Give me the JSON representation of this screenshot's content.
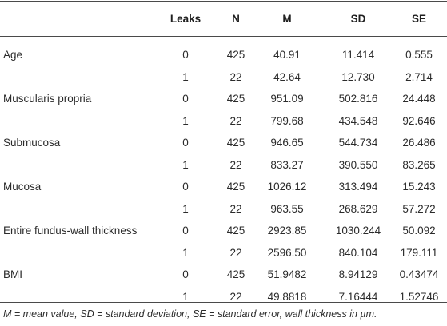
{
  "table": {
    "headers": {
      "label": "",
      "leaks": "Leaks",
      "n": "N",
      "m": "M",
      "sd": "SD",
      "se": "SE"
    },
    "rows": [
      {
        "label": "Age",
        "leaks": "0",
        "n": "425",
        "m": "40.91",
        "sd": "11.414",
        "se": "0.555"
      },
      {
        "label": "",
        "leaks": "1",
        "n": "22",
        "m": "42.64",
        "sd": "12.730",
        "se": "2.714"
      },
      {
        "label": "Muscularis propria",
        "leaks": "0",
        "n": "425",
        "m": "951.09",
        "sd": "502.816",
        "se": "24.448"
      },
      {
        "label": "",
        "leaks": "1",
        "n": "22",
        "m": "799.68",
        "sd": "434.548",
        "se": "92.646"
      },
      {
        "label": "Submucosa",
        "leaks": "0",
        "n": "425",
        "m": "946.65",
        "sd": "544.734",
        "se": "26.486"
      },
      {
        "label": "",
        "leaks": "1",
        "n": "22",
        "m": "833.27",
        "sd": "390.550",
        "se": "83.265"
      },
      {
        "label": "Mucosa",
        "leaks": "0",
        "n": "425",
        "m": "1026.12",
        "sd": "313.494",
        "se": "15.243"
      },
      {
        "label": "",
        "leaks": "1",
        "n": "22",
        "m": "963.55",
        "sd": "268.629",
        "se": "57.272"
      },
      {
        "label": "Entire fundus-wall thickness",
        "leaks": "0",
        "n": "425",
        "m": "2923.85",
        "sd": "1030.244",
        "se": "50.092"
      },
      {
        "label": "",
        "leaks": "1",
        "n": "22",
        "m": "2596.50",
        "sd": "840.104",
        "se": "179.111"
      },
      {
        "label": "BMI",
        "leaks": "0",
        "n": "425",
        "m": "51.9482",
        "sd": "8.94129",
        "se": "0.43474"
      },
      {
        "label": "",
        "leaks": "1",
        "n": "22",
        "m": "49.8818",
        "sd": "7.16444",
        "se": "1.52746"
      }
    ]
  },
  "footnote": "M = mean value, SD = standard deviation, SE = standard error, wall thickness in µm."
}
